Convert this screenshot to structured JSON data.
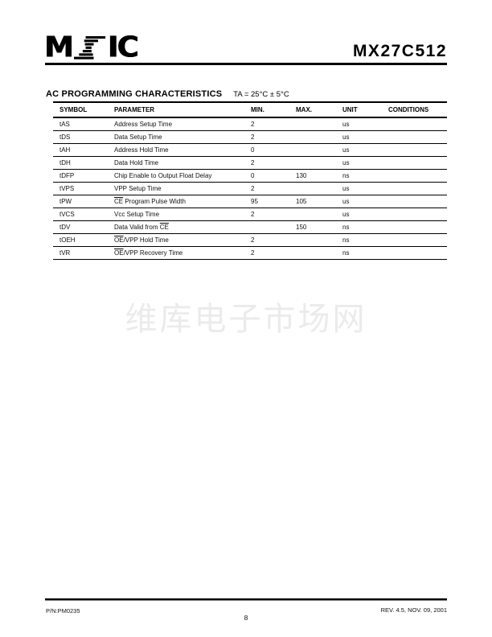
{
  "logo": {
    "m": "M",
    "ic": "IC"
  },
  "header": {
    "model": "MX27C512"
  },
  "section": {
    "title": "AC PROGRAMMING CHARACTERISTICS",
    "condition": "TA = 25°C ± 5°C"
  },
  "table": {
    "columns": [
      "SYMBOL",
      "PARAMETER",
      "MIN.",
      "MAX.",
      "UNIT",
      "CONDITIONS"
    ],
    "rows": [
      {
        "symbol": "tAS",
        "pre": "Address Setup Time",
        "over": "",
        "post": "",
        "min": "2",
        "max": "",
        "unit": "us",
        "cond": ""
      },
      {
        "symbol": "tDS",
        "pre": "Data Setup Time",
        "over": "",
        "post": "",
        "min": "2",
        "max": "",
        "unit": "us",
        "cond": ""
      },
      {
        "symbol": "tAH",
        "pre": "Address Hold Time",
        "over": "",
        "post": "",
        "min": "0",
        "max": "",
        "unit": "us",
        "cond": ""
      },
      {
        "symbol": "tDH",
        "pre": "Data Hold Time",
        "over": "",
        "post": "",
        "min": "2",
        "max": "",
        "unit": "us",
        "cond": ""
      },
      {
        "symbol": "tDFP",
        "pre": "Chip Enable to Output Float Delay",
        "over": "",
        "post": "",
        "min": "0",
        "max": "130",
        "unit": "ns",
        "cond": ""
      },
      {
        "symbol": "tVPS",
        "pre": "VPP Setup Time",
        "over": "",
        "post": "",
        "min": "2",
        "max": "",
        "unit": "us",
        "cond": ""
      },
      {
        "symbol": "tPW",
        "pre": "",
        "over": "CE",
        "post": " Program Pulse Width",
        "min": "95",
        "max": "105",
        "unit": "us",
        "cond": ""
      },
      {
        "symbol": "tVCS",
        "pre": "Vcc Setup Time",
        "over": "",
        "post": "",
        "min": "2",
        "max": "",
        "unit": "us",
        "cond": ""
      },
      {
        "symbol": "tDV",
        "pre": "Data Valid from ",
        "over": "CE",
        "post": "",
        "min": "",
        "max": "150",
        "unit": "ns",
        "cond": ""
      },
      {
        "symbol": "tOEH",
        "pre": "",
        "over": "OE",
        "post": "/VPP Hold Time",
        "min": "2",
        "max": "",
        "unit": "ns",
        "cond": ""
      },
      {
        "symbol": "tVR",
        "pre": "",
        "over": "OE",
        "post": "/VPP Recovery Time",
        "min": "2",
        "max": "",
        "unit": "ns",
        "cond": ""
      }
    ]
  },
  "watermark": {
    "text": "维库电子市场网"
  },
  "footer": {
    "pn": "P/N:PM0235",
    "page": "8",
    "rev": "REV. 4.5, NOV. 09, 2001"
  }
}
